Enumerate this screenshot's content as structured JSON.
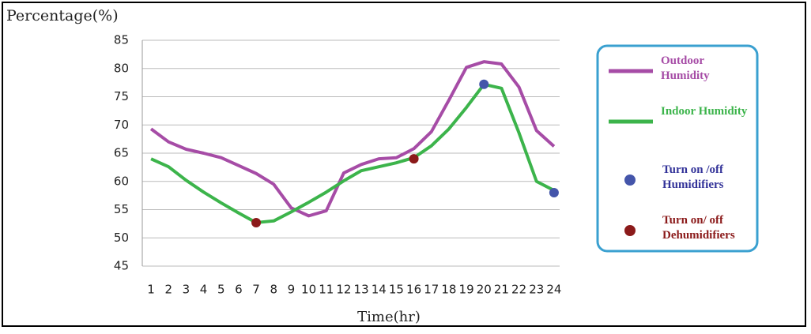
{
  "chart_data": {
    "type": "line",
    "y_label": "Percentage(%)",
    "x_label": "Time(hr)",
    "x": [
      1,
      2,
      3,
      4,
      5,
      6,
      7,
      8,
      9,
      10,
      11,
      12,
      13,
      14,
      15,
      16,
      17,
      18,
      19,
      20,
      21,
      22,
      23,
      24
    ],
    "xlim": [
      0.5,
      24.5
    ],
    "xticks": [
      1,
      2,
      3,
      4,
      5,
      6,
      7,
      8,
      9,
      10,
      11,
      12,
      13,
      14,
      15,
      16,
      17,
      18,
      19,
      20,
      21,
      22,
      23,
      24
    ],
    "ylim": [
      45,
      85
    ],
    "yticks": [
      45,
      50,
      55,
      60,
      65,
      70,
      75,
      80,
      85
    ],
    "grid": true,
    "legend": "right",
    "series": [
      {
        "name": "Outdoor Humidity",
        "color": "#a64ca6",
        "values": [
          69.3,
          67,
          65.7,
          65,
          64.2,
          62.8,
          61.4,
          59.5,
          55.3,
          53.9,
          54.8,
          61.5,
          63,
          64,
          64.2,
          65.8,
          68.8,
          74.4,
          80.2,
          81.2,
          80.8,
          76.7,
          69,
          66.2
        ]
      },
      {
        "name": "Indoor Humidity",
        "color": "#3cb44b",
        "values": [
          64,
          62.6,
          60.2,
          58.1,
          56.2,
          54.4,
          52.7,
          53,
          54.6,
          56.3,
          58.1,
          60.1,
          61.9,
          62.6,
          63.3,
          64.2,
          66.3,
          69.3,
          73.1,
          77.2,
          76.5,
          68.6,
          60,
          58.4
        ]
      }
    ],
    "markers": [
      {
        "name": "Turn on /off Humidifiers",
        "color": "#4455aa",
        "x": [
          20,
          24
        ],
        "values": [
          77.2,
          58
        ]
      },
      {
        "name": "Turn on/ off Dehumidifiers",
        "color": "#8b1a1a",
        "x": [
          7,
          16
        ],
        "values": [
          52.7,
          64
        ]
      }
    ]
  }
}
